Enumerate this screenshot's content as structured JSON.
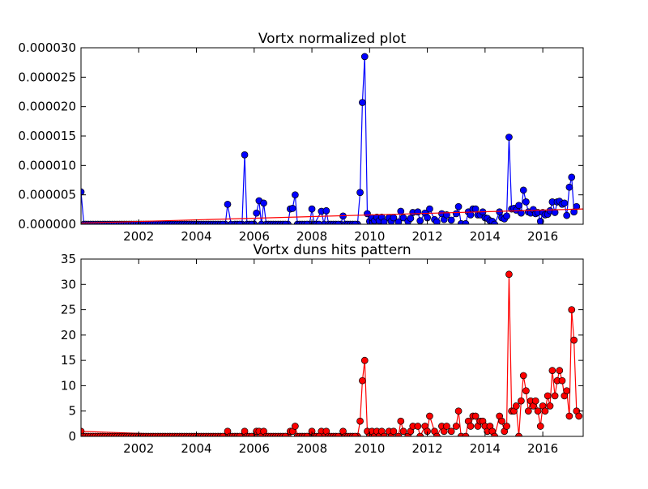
{
  "chart_data": [
    {
      "type": "line",
      "title": "Vortx normalized plot",
      "xlabel": "",
      "ylabel": "",
      "xlim": [
        2000.0,
        2017.4
      ],
      "ylim": [
        0,
        3e-05
      ],
      "x_ticks": [
        2002,
        2004,
        2006,
        2008,
        2010,
        2012,
        2014,
        2016
      ],
      "x_tick_labels": [
        "2002",
        "2004",
        "2006",
        "2008",
        "2010",
        "2012",
        "2014",
        "2016"
      ],
      "y_ticks": [
        0,
        5e-06,
        1e-05,
        1.5e-05,
        2e-05,
        2.5e-05,
        3e-05
      ],
      "y_tick_labels": [
        "0.000000",
        "0.000005",
        "0.000010",
        "0.000015",
        "0.000020",
        "0.000025",
        "0.000030"
      ],
      "grid": false,
      "series": [
        {
          "color": "#0000ff",
          "marker": "circle",
          "points": [
            [
              2000.0,
              5.5e-06
            ],
            [
              2000.1,
              0
            ],
            [
              2005.0,
              0
            ],
            [
              2005.08,
              3.4e-06
            ],
            [
              2005.2,
              0
            ],
            [
              2005.58,
              0
            ],
            [
              2005.67,
              1.18e-05
            ],
            [
              2005.75,
              0
            ],
            [
              2006.0,
              0
            ],
            [
              2006.08,
              1.9e-06
            ],
            [
              2006.17,
              4e-06
            ],
            [
              2006.25,
              0
            ],
            [
              2006.33,
              3.6e-06
            ],
            [
              2006.42,
              0
            ],
            [
              2007.17,
              0
            ],
            [
              2007.25,
              2.6e-06
            ],
            [
              2007.33,
              2.7e-06
            ],
            [
              2007.42,
              5e-06
            ],
            [
              2007.5,
              0
            ],
            [
              2007.92,
              0
            ],
            [
              2008.0,
              2.6e-06
            ],
            [
              2008.08,
              0
            ],
            [
              2008.33,
              2.2e-06
            ],
            [
              2008.42,
              0
            ],
            [
              2008.5,
              2.3e-06
            ],
            [
              2008.58,
              0
            ],
            [
              2009.0,
              0
            ],
            [
              2009.08,
              1.4e-06
            ],
            [
              2009.17,
              0
            ],
            [
              2009.58,
              0
            ],
            [
              2009.67,
              5.4e-06
            ],
            [
              2009.75,
              2.07e-05
            ],
            [
              2009.83,
              2.85e-05
            ],
            [
              2009.92,
              1.8e-06
            ],
            [
              2010.0,
              5e-07
            ],
            [
              2010.08,
              1.1e-06
            ],
            [
              2010.17,
              6e-07
            ],
            [
              2010.25,
              1.2e-06
            ],
            [
              2010.33,
              6e-07
            ],
            [
              2010.42,
              1.2e-06
            ],
            [
              2010.5,
              4e-07
            ],
            [
              2010.67,
              1.1e-06
            ],
            [
              2010.75,
              5e-07
            ],
            [
              2010.83,
              1.1e-06
            ],
            [
              2011.0,
              4e-07
            ],
            [
              2011.08,
              2.2e-06
            ],
            [
              2011.17,
              1.1e-06
            ],
            [
              2011.33,
              5e-07
            ],
            [
              2011.42,
              1e-06
            ],
            [
              2011.5,
              2e-06
            ],
            [
              2011.67,
              2.1e-06
            ],
            [
              2011.75,
              6e-07
            ],
            [
              2011.92,
              1.9e-06
            ],
            [
              2012.0,
              1.1e-06
            ],
            [
              2012.08,
              2.6e-06
            ],
            [
              2012.25,
              8e-07
            ],
            [
              2012.33,
              4e-07
            ],
            [
              2012.5,
              1.8e-06
            ],
            [
              2012.58,
              8e-07
            ],
            [
              2012.67,
              1.6e-06
            ],
            [
              2012.83,
              7e-07
            ],
            [
              2013.0,
              1.8e-06
            ],
            [
              2013.08,
              3e-06
            ],
            [
              2013.17,
              1e-07
            ],
            [
              2013.33,
              1e-07
            ],
            [
              2013.42,
              2.1e-06
            ],
            [
              2013.5,
              1.6e-06
            ],
            [
              2013.58,
              2.6e-06
            ],
            [
              2013.67,
              2.6e-06
            ],
            [
              2013.75,
              1.6e-06
            ],
            [
              2013.83,
              1.6e-06
            ],
            [
              2013.92,
              2.1e-06
            ],
            [
              2014.0,
              1.1e-06
            ],
            [
              2014.08,
              1e-06
            ],
            [
              2014.17,
              6e-07
            ],
            [
              2014.25,
              5e-07
            ],
            [
              2014.33,
              0
            ],
            [
              2014.5,
              2.1e-06
            ],
            [
              2014.58,
              1.1e-06
            ],
            [
              2014.67,
              9e-07
            ],
            [
              2014.75,
              1.4e-06
            ],
            [
              2014.83,
              1.48e-05
            ],
            [
              2014.92,
              2.6e-06
            ],
            [
              2015.0,
              2.7e-06
            ],
            [
              2015.08,
              2.4e-06
            ],
            [
              2015.17,
              3.2e-06
            ],
            [
              2015.25,
              1.9e-06
            ],
            [
              2015.33,
              5.8e-06
            ],
            [
              2015.42,
              3.8e-06
            ],
            [
              2015.5,
              2.1e-06
            ],
            [
              2015.58,
              1.9e-06
            ],
            [
              2015.67,
              2.5e-06
            ],
            [
              2015.75,
              1.8e-06
            ],
            [
              2015.83,
              2e-06
            ],
            [
              2015.92,
              5e-07
            ],
            [
              2016.0,
              2e-06
            ],
            [
              2016.08,
              1.6e-06
            ],
            [
              2016.17,
              1.7e-06
            ],
            [
              2016.25,
              2.3e-06
            ],
            [
              2016.33,
              3.8e-06
            ],
            [
              2016.42,
              2e-06
            ],
            [
              2016.5,
              3.8e-06
            ],
            [
              2016.58,
              3.9e-06
            ],
            [
              2016.67,
              3.4e-06
            ],
            [
              2016.75,
              3.6e-06
            ],
            [
              2016.83,
              1.5e-06
            ],
            [
              2016.92,
              6.3e-06
            ],
            [
              2017.0,
              8e-06
            ],
            [
              2017.08,
              2.1e-06
            ],
            [
              2017.17,
              3e-06
            ]
          ]
        },
        {
          "color": "#ff0000",
          "marker": "none",
          "points": [
            [
              2000.0,
              2e-07
            ],
            [
              2017.4,
              2.6e-06
            ]
          ]
        }
      ]
    },
    {
      "type": "line",
      "title": "Vortx duns hits pattern",
      "xlabel": "",
      "ylabel": "",
      "xlim": [
        2000.0,
        2017.4
      ],
      "ylim": [
        0,
        35
      ],
      "x_ticks": [
        2002,
        2004,
        2006,
        2008,
        2010,
        2012,
        2014,
        2016
      ],
      "x_tick_labels": [
        "2002",
        "2004",
        "2006",
        "2008",
        "2010",
        "2012",
        "2014",
        "2016"
      ],
      "y_ticks": [
        0,
        5,
        10,
        15,
        20,
        25,
        30,
        35
      ],
      "y_tick_labels": [
        "0",
        "5",
        "10",
        "15",
        "20",
        "25",
        "30",
        "35"
      ],
      "grid": false,
      "series": [
        {
          "color": "#ff0000",
          "marker": "circle",
          "points": [
            [
              2000.0,
              1
            ],
            [
              2005.0,
              0
            ],
            [
              2005.08,
              1
            ],
            [
              2005.17,
              0
            ],
            [
              2005.58,
              0
            ],
            [
              2005.67,
              1
            ],
            [
              2005.75,
              0
            ],
            [
              2006.0,
              0
            ],
            [
              2006.08,
              1
            ],
            [
              2006.17,
              1
            ],
            [
              2006.25,
              0
            ],
            [
              2006.33,
              1
            ],
            [
              2006.42,
              0
            ],
            [
              2007.17,
              0
            ],
            [
              2007.25,
              1
            ],
            [
              2007.33,
              1
            ],
            [
              2007.42,
              2
            ],
            [
              2007.5,
              0
            ],
            [
              2007.92,
              0
            ],
            [
              2008.0,
              1
            ],
            [
              2008.08,
              0
            ],
            [
              2008.33,
              1
            ],
            [
              2008.42,
              0
            ],
            [
              2008.5,
              1
            ],
            [
              2008.58,
              0
            ],
            [
              2009.0,
              0
            ],
            [
              2009.08,
              1
            ],
            [
              2009.17,
              0
            ],
            [
              2009.58,
              0
            ],
            [
              2009.67,
              3
            ],
            [
              2009.75,
              11
            ],
            [
              2009.83,
              15
            ],
            [
              2009.92,
              1
            ],
            [
              2010.0,
              0
            ],
            [
              2010.08,
              1
            ],
            [
              2010.17,
              0
            ],
            [
              2010.25,
              1
            ],
            [
              2010.33,
              0
            ],
            [
              2010.42,
              1
            ],
            [
              2010.5,
              0
            ],
            [
              2010.67,
              1
            ],
            [
              2010.75,
              0
            ],
            [
              2010.83,
              1
            ],
            [
              2011.0,
              0
            ],
            [
              2011.08,
              3
            ],
            [
              2011.17,
              1
            ],
            [
              2011.33,
              0
            ],
            [
              2011.42,
              1
            ],
            [
              2011.5,
              2
            ],
            [
              2011.67,
              2
            ],
            [
              2011.75,
              0
            ],
            [
              2011.92,
              2
            ],
            [
              2012.0,
              1
            ],
            [
              2012.08,
              4
            ],
            [
              2012.25,
              1
            ],
            [
              2012.33,
              0
            ],
            [
              2012.5,
              2
            ],
            [
              2012.58,
              1
            ],
            [
              2012.67,
              2
            ],
            [
              2012.83,
              1
            ],
            [
              2013.0,
              2
            ],
            [
              2013.08,
              5
            ],
            [
              2013.17,
              0
            ],
            [
              2013.33,
              0
            ],
            [
              2013.42,
              3
            ],
            [
              2013.5,
              2
            ],
            [
              2013.58,
              4
            ],
            [
              2013.67,
              4
            ],
            [
              2013.75,
              2
            ],
            [
              2013.83,
              3
            ],
            [
              2013.92,
              3
            ],
            [
              2014.0,
              2
            ],
            [
              2014.08,
              1
            ],
            [
              2014.17,
              2
            ],
            [
              2014.25,
              1
            ],
            [
              2014.33,
              0
            ],
            [
              2014.5,
              4
            ],
            [
              2014.58,
              3
            ],
            [
              2014.67,
              1
            ],
            [
              2014.75,
              2
            ],
            [
              2014.83,
              32
            ],
            [
              2014.92,
              5
            ],
            [
              2015.0,
              5
            ],
            [
              2015.08,
              6
            ],
            [
              2015.17,
              0
            ],
            [
              2015.25,
              7
            ],
            [
              2015.33,
              12
            ],
            [
              2015.42,
              9
            ],
            [
              2015.5,
              5
            ],
            [
              2015.58,
              7
            ],
            [
              2015.67,
              6
            ],
            [
              2015.75,
              7
            ],
            [
              2015.83,
              5
            ],
            [
              2015.92,
              2
            ],
            [
              2016.0,
              6
            ],
            [
              2016.08,
              5
            ],
            [
              2016.17,
              8
            ],
            [
              2016.25,
              6
            ],
            [
              2016.33,
              13
            ],
            [
              2016.42,
              8
            ],
            [
              2016.5,
              11
            ],
            [
              2016.58,
              13
            ],
            [
              2016.67,
              11
            ],
            [
              2016.75,
              8
            ],
            [
              2016.83,
              9
            ],
            [
              2016.92,
              4
            ],
            [
              2017.0,
              25
            ],
            [
              2017.08,
              19
            ],
            [
              2017.17,
              5
            ],
            [
              2017.25,
              4
            ]
          ]
        }
      ]
    }
  ]
}
